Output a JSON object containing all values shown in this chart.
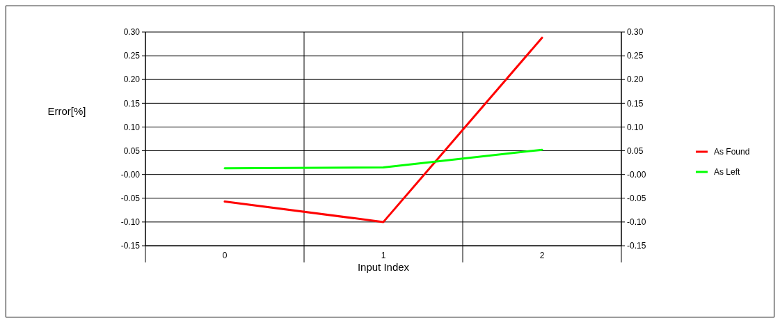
{
  "chart_data": {
    "type": "line",
    "xlabel": "Input Index",
    "ylabel": "Error[%]",
    "categories": [
      "0",
      "1",
      "2"
    ],
    "series": [
      {
        "name": "As Found",
        "color": "#ff0000",
        "values": [
          -0.057,
          -0.1,
          0.288
        ]
      },
      {
        "name": "As Left",
        "color": "#00ff00",
        "values": [
          0.013,
          0.015,
          0.052
        ]
      }
    ],
    "ylim": [
      -0.15,
      0.3
    ],
    "yticks": [
      {
        "value": -0.15,
        "label": "-0.15"
      },
      {
        "value": -0.1,
        "label": "-0.10"
      },
      {
        "value": -0.05,
        "label": "-0.05"
      },
      {
        "value": 0,
        "label": "-0.00"
      },
      {
        "value": 0.05,
        "label": "0.05"
      },
      {
        "value": 0.1,
        "label": "0.10"
      },
      {
        "value": 0.15,
        "label": "0.15"
      },
      {
        "value": 0.2,
        "label": "0.20"
      },
      {
        "value": 0.25,
        "label": "0.25"
      },
      {
        "value": 0.3,
        "label": "0.30"
      }
    ],
    "y2lim": [
      -0.15,
      0.3
    ],
    "y2ticks": [
      {
        "value": -0.15,
        "label": "-0.15"
      },
      {
        "value": -0.1,
        "label": "-0.10"
      },
      {
        "value": -0.05,
        "label": "-0.05"
      },
      {
        "value": 0,
        "label": "-0.00"
      },
      {
        "value": 0.05,
        "label": "0.05"
      },
      {
        "value": 0.1,
        "label": "0.10"
      },
      {
        "value": 0.15,
        "label": "0.15"
      },
      {
        "value": 0.2,
        "label": "0.20"
      },
      {
        "value": 0.25,
        "label": "0.25"
      },
      {
        "value": 0.3,
        "label": "0.30"
      }
    ],
    "grid": true,
    "legend": "right",
    "marker": "none",
    "line_style": "solid"
  }
}
